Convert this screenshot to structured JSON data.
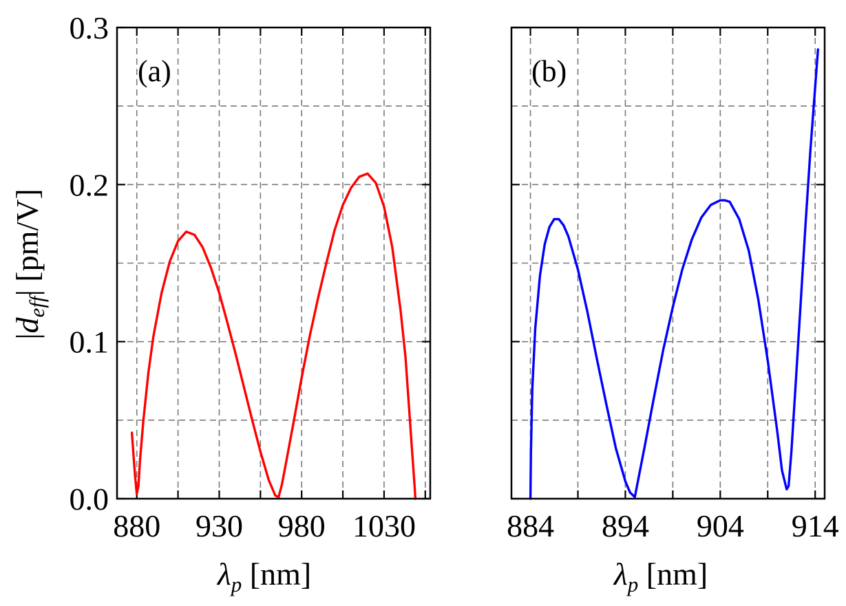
{
  "chart_data": [
    {
      "type": "line",
      "panel_label": "(a)",
      "xlabel_symbol": "λ",
      "xlabel_sub": "p",
      "xlabel_unit": " [nm]",
      "ylabel_left": "|",
      "ylabel_symbol": "d",
      "ylabel_sub": "eff",
      "ylabel_right": "| [pm/V]",
      "xlim": [
        868,
        1058
      ],
      "ylim": [
        0,
        0.3
      ],
      "xticks": [
        880,
        930,
        980,
        1030
      ],
      "xtick_labels": [
        "880",
        "930",
        "980",
        "1030"
      ],
      "xgrid": [
        880,
        905,
        930,
        955,
        980,
        1005,
        1030,
        1055
      ],
      "yticks": [
        0,
        0.1,
        0.2,
        0.3
      ],
      "ytick_labels": [
        "0.0",
        "0.1",
        "0.2",
        "0.3"
      ],
      "ygrid": [
        0.05,
        0.1,
        0.15,
        0.2,
        0.25
      ],
      "grid": true,
      "series": [
        {
          "name": "|d_eff| (a)",
          "color": "#ff0000",
          "x": [
            877,
            878,
            879,
            880,
            881,
            882,
            884,
            887,
            890,
            895,
            900,
            905,
            910,
            915,
            920,
            925,
            930,
            935,
            940,
            945,
            950,
            955,
            960,
            964,
            966,
            968,
            970,
            975,
            980,
            985,
            990,
            995,
            1000,
            1005,
            1010,
            1015,
            1020,
            1025,
            1030,
            1035,
            1040,
            1043,
            1045,
            1047,
            1048.5,
            1049
          ],
          "y": [
            0.042,
            0.028,
            0.014,
            0.003,
            0.008,
            0.025,
            0.05,
            0.08,
            0.103,
            0.131,
            0.151,
            0.164,
            0.17,
            0.168,
            0.16,
            0.147,
            0.131,
            0.112,
            0.092,
            0.071,
            0.05,
            0.03,
            0.012,
            0.002,
            0.001,
            0.009,
            0.02,
            0.048,
            0.077,
            0.104,
            0.128,
            0.15,
            0.171,
            0.187,
            0.198,
            0.205,
            0.207,
            0.201,
            0.186,
            0.16,
            0.12,
            0.09,
            0.06,
            0.03,
            0.008,
            0.0
          ]
        }
      ]
    },
    {
      "type": "line",
      "panel_label": "(b)",
      "xlabel_symbol": "λ",
      "xlabel_sub": "p",
      "xlabel_unit": " [nm]",
      "xlim": [
        882,
        915
      ],
      "ylim": [
        0,
        0.3
      ],
      "xticks": [
        884,
        894,
        904,
        914
      ],
      "xtick_labels": [
        "884",
        "894",
        "904",
        "914"
      ],
      "xgrid": [
        884,
        889,
        894,
        899,
        904,
        909,
        914
      ],
      "yticks": [
        0,
        0.1,
        0.2,
        0.3
      ],
      "ytick_labels": [
        "",
        "",
        "",
        ""
      ],
      "ygrid": [
        0.05,
        0.1,
        0.15,
        0.2,
        0.25
      ],
      "grid": true,
      "series": [
        {
          "name": "|d_eff| (b)",
          "color": "#0000ff",
          "x": [
            884,
            884.05,
            884.2,
            884.5,
            885,
            885.5,
            886,
            886.5,
            887,
            887.5,
            888,
            889,
            890,
            891,
            892,
            893,
            894,
            894.5,
            895,
            896,
            897,
            898,
            899,
            900,
            901,
            902,
            903,
            904,
            904.5,
            905,
            906,
            907,
            908,
            909,
            910,
            910.5,
            911,
            911.2,
            911.5,
            912,
            912.5,
            913,
            913.5,
            914,
            914.3
          ],
          "y": [
            0.0,
            0.03,
            0.07,
            0.108,
            0.142,
            0.162,
            0.173,
            0.178,
            0.178,
            0.174,
            0.167,
            0.146,
            0.119,
            0.089,
            0.06,
            0.032,
            0.011,
            0.004,
            0.001,
            0.032,
            0.064,
            0.095,
            0.122,
            0.146,
            0.165,
            0.179,
            0.187,
            0.19,
            0.19,
            0.189,
            0.178,
            0.158,
            0.127,
            0.088,
            0.043,
            0.018,
            0.006,
            0.008,
            0.03,
            0.078,
            0.127,
            0.176,
            0.222,
            0.262,
            0.286
          ]
        }
      ]
    }
  ]
}
